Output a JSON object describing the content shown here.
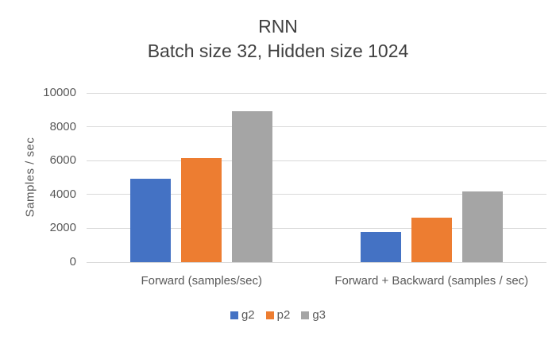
{
  "chart_data": {
    "type": "bar",
    "title": "RNN",
    "subtitle": "Batch size 32, Hidden size 1024",
    "ylabel": "Samples / sec",
    "categories": [
      "Forward (samples/sec)",
      "Forward + Backward (samples / sec)"
    ],
    "series": [
      {
        "name": "g2",
        "color": "#4472C4",
        "values": [
          4950,
          1800
        ]
      },
      {
        "name": "p2",
        "color": "#ED7D31",
        "values": [
          6150,
          2650
        ]
      },
      {
        "name": "g3",
        "color": "#A5A5A5",
        "values": [
          8900,
          4200
        ]
      }
    ],
    "ylim": [
      0,
      10000
    ],
    "yticks": [
      0,
      2000,
      4000,
      6000,
      8000,
      10000
    ],
    "grid": true,
    "legend_position": "bottom"
  },
  "theme": {
    "grid_color": "#D9D9D9",
    "axis_line_color": "#D9D9D9",
    "title_color": "#404040",
    "axis_text_color": "#595959",
    "background": "#FFFFFF"
  }
}
